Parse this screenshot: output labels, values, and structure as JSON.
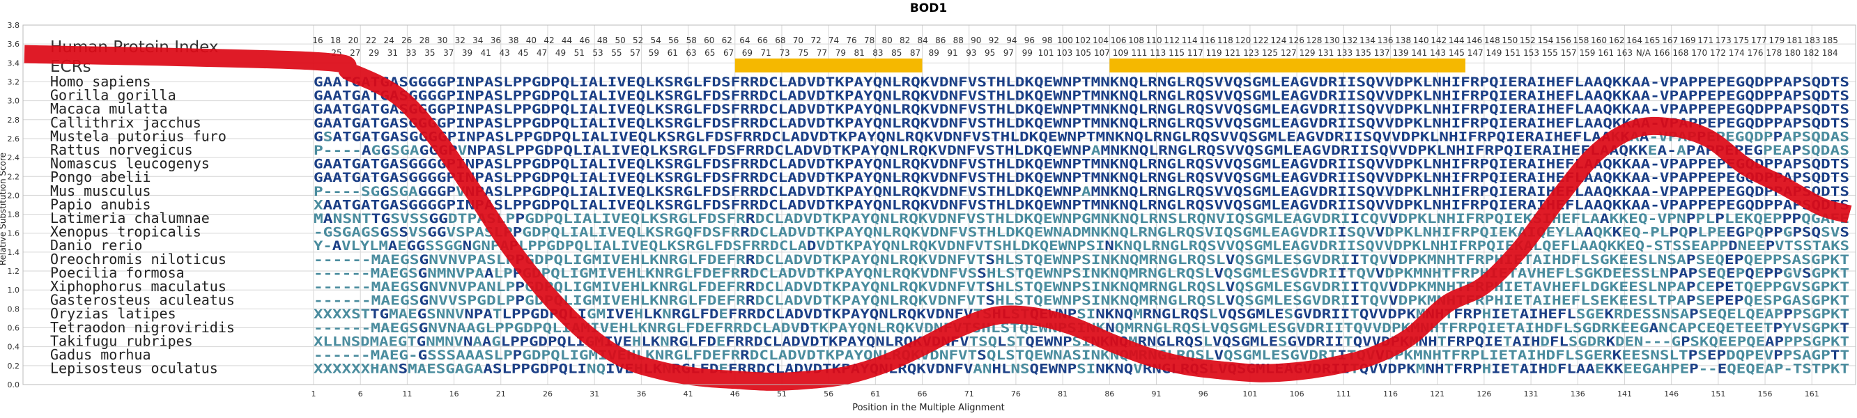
{
  "chart_data": {
    "type": "line",
    "title": "BOD1",
    "xlabel": "Position in the Multiple Alignment",
    "ylabel": "Relative Substitution Score",
    "ylim": [
      0.0,
      3.8
    ],
    "yticks": [
      "0.0",
      "0.2",
      "0.4",
      "0.6",
      "0.8",
      "1.0",
      "1.2",
      "1.4",
      "1.6",
      "1.8",
      "2.0",
      "2.2",
      "2.4",
      "2.6",
      "2.8",
      "3.0",
      "3.2",
      "3.4",
      "3.6",
      "3.8"
    ],
    "xlim": [
      1,
      165
    ],
    "xticks": [
      1,
      6,
      11,
      16,
      21,
      26,
      31,
      36,
      41,
      46,
      51,
      56,
      61,
      66,
      71,
      76,
      81,
      86,
      91,
      96,
      101,
      106,
      111,
      116,
      121,
      126,
      131,
      136,
      141,
      146,
      151,
      156,
      161
    ],
    "grid": true,
    "legend": "none",
    "index_title": "Human Protein Index",
    "ecr_label": "ECRs",
    "index_row1": [
      "16",
      "18",
      "20",
      "22",
      "24",
      "26",
      "28",
      "30",
      "32",
      "34",
      "36",
      "38",
      "40",
      "42",
      "44",
      "46",
      "48",
      "50",
      "52",
      "54",
      "56",
      "58",
      "60",
      "62",
      "64",
      "66",
      "68",
      "70",
      "72",
      "74",
      "76",
      "78",
      "80",
      "82",
      "84",
      "86",
      "88",
      "90",
      "92",
      "94",
      "96",
      "98",
      "100",
      "102",
      "104",
      "106",
      "108",
      "110",
      "112",
      "114",
      "116",
      "118",
      "120",
      "122",
      "124",
      "126",
      "128",
      "130",
      "132",
      "134",
      "136",
      "138",
      "140",
      "142",
      "144",
      "146",
      "148",
      "150",
      "152",
      "154",
      "156",
      "158",
      "160",
      "162",
      "164",
      "165",
      "167",
      "169",
      "171",
      "173",
      "175",
      "177",
      "179",
      "181",
      "183",
      "185"
    ],
    "index_row2": [
      "25",
      "27",
      "29",
      "31",
      "33",
      "35",
      "37",
      "39",
      "41",
      "43",
      "45",
      "47",
      "49",
      "51",
      "53",
      "55",
      "57",
      "59",
      "61",
      "63",
      "65",
      "67",
      "69",
      "71",
      "73",
      "75",
      "77",
      "79",
      "81",
      "83",
      "85",
      "87",
      "89",
      "91",
      "93",
      "95",
      "97",
      "99",
      "101",
      "103",
      "105",
      "107",
      "109",
      "111",
      "113",
      "115",
      "117",
      "119",
      "121",
      "123",
      "125",
      "127",
      "129",
      "131",
      "133",
      "135",
      "137",
      "139",
      "141",
      "143",
      "145",
      "147",
      "149",
      "151",
      "153",
      "155",
      "157",
      "159",
      "161",
      "163",
      "N/A",
      "166",
      "168",
      "170",
      "172",
      "174",
      "176",
      "178",
      "180",
      "182",
      "184"
    ],
    "ecr_regions": [
      [
        46,
        66
      ],
      [
        86,
        124
      ]
    ],
    "species": [
      "Homo sapiens",
      "Gorilla gorilla",
      "Macaca mulatta",
      "Callithrix jacchus",
      "Mustela putorius furo",
      "Rattus norvegicus",
      "Nomascus leucogenys",
      "Pongo abelii",
      "Mus musculus",
      "Papio anubis",
      "Latimeria chalumnae",
      "Xenopus tropicalis",
      "Danio rerio",
      "Oreochromis niloticus",
      "Poecilia formosa",
      "Xiphophorus maculatus",
      "Gasterosteus aculeatus",
      "Oryzias latipes",
      "Tetraodon nigroviridis",
      "Takifugu rubripes",
      "Gadus morhua",
      "Lepisosteus oculatus"
    ],
    "sequences": [
      "GAATGATGASGGGGPINPASLPPGDPQLIALIVEQLKSRGLFDSFRRDCLADVDTKPAYQNLRQKVDNFVSTHLDKQEWNPTMNKNQLRNGLRQSVVQSGMLEAGVDRIISQVVDPKLNHIFRPQIERAIHEFLAAQKKAA-VPAPPEPEGQDPPAPSQDTS",
      "GAATGATGASGGGGPINPASLPPGDPQLIALIVEQLKSRGLFDSFRRDCLADVDTKPAYQNLRQKVDNFVSTHLDKQEWNPTMNKNQLRNGLRQSVVQSGMLEAGVDRIISQVVDPKLNHIFRPQIERAIHEFLAAQKKAA-VPAPPEPEGQDPPAPSQDTS",
      "GAATGATGASGGGGPINPASLPPGDPQLIALIVEQLKSRGLFDSFRRDCLADVDTKPAYQNLRQKVDNFVSTHLDKQEWNPTMNKNQLRNGLRQSVVQSGMLEAGVDRIISQVVDPKLNHIFRPQIERAIHEFLAAQKKAA-VPAPPEPEGQDPPAPSQDTS",
      "GAATGATGASGGGGPINPASLPPGDPQLIALIVEQLKSRGLFDSFRRDCLADVDTKPAYQNLRQKVDNFVSTHLDKQEWNPTMNKNQLRNGLRQSVVQSGMLEAGVDRIISQVVDPKLNHIFRPQIERAIHEFLAAQKKAA-VPAPPEPEGQDPPAPSQDTS",
      "GSATGATGASGGGGPINPASLPPGDPQLIALIVEQLKSRGLFDSFRRDCLADVDTKPAYQNLRQKVDNFVSTHLDKQEWNPTMNKNQLRNGLRQSVVQSGMLEAGVDRIISQVVDPKLNHIFRPQIERAIHEFLAAKKAA-VPAPPEPEGQDPPAPSQDAS",
      "P----AGGSGAGGGPVNPASLPPGDPQLIALIVEQLKSRGLFDSFRRDCLADVDTKPAYQNLRQKVDNFVSTHLDKQEWNPAMNKNQLRNGLRQSVVQSGMLEAGVDRIISQVVDPKLNHIFRPQIERAIHEFLAAQKKEA-APAPPEPEGPEAPSQDAS",
      "GAATGATGASGGGGPINPASLPPGDPQLIALIVEQLKSRGLFDSFRRDCLADVDTKPAYQNLRQKVDNFVSTHLDKQEWNPTMNKNQLRNGLRQSVVQSGMLEAGVDRIISQVVDPKLNHIFRPQIERAIHEFLAAQKKAA-VPAPPEPEGQDPPAPSQDTS",
      "GAATGATGASGGGGPINPASLPPGDPQLIALIVEQLKSRGLFDSFRRDCLADVDTKPAYQNLRQKVDNFVSTHLDKQEWNPTMNKNQLRNGLRQSVVQSGMLEAGVDRIISQVVDPKLNHIFRPQIERAIHEFLAAQKKAA-VPAPPEPEGQDPPAPSQDTS",
      "P----SGGSGAGGGPVNPASLPPGDPQLIALIVEQLKSRGLFDSFRRDCLADVDTKPAYQNLRQKVDNFVSTHLDKQEWNPAMNKNQLRNGLRQSVVQSGMLEAGVDRIISQVVDPKLNHIFRPQIERAIHEFLAAQKKAA-VPAPPEPEGQDPPAPSQDTS",
      "XAATGATGASGGGGPINPASLPPGDPQLIALIVEQLKSRGLFDSFRRDCLADVDTKPAYQNLRQKVDNFVSTHLDKQEWNPTMNKNQLRNGLRQSVVQSGMLEAGVDRIISQVVDPKLNHIFRPQIERAIHEFLAAQKKAA-VPAPPEPEGQDPPAPSQDTS",
      "MANSNTTGSVSSGGDTPASLPPGDPQLIALIVEQLKSRGLFDSFRRDCLADVDTKPAYQNLRQKVDNFVSTHLDKQEWNPGMNKNQLRNSLRQNVIQSGMLEAGVDRIICQVVDPKLNHIFRPQIEKSIHEFLAAKKEQ-VPNPPLPLEKQEPPPQGAFE",
      "-GSGAGSGSSVSGGVSPASLPPGDPQLIALIVEQLKSRGQFDSFRRDCLADVDTKPAYQNLRQKVDNFVSTHLDKQEWNADMNKNQLRNGLRQSVIQSGMLEAGVDRIISQVVDPKLNHIFRPQIEKAIQEYLAAQKKEQ-PLPQPLPEEGPQPPGPSQSVS",
      "Y-AVLYLMAEGGSSGGNGNPAPLPPGDPQLIALIVEQLKSRGLFDSFRRDCLADVDTKPAYQNLRQKVDNFVTSHLDKQEWNPSINKNQLRNGLRQSVVQSGMLEAGVDRIISQVVDPKLNHIFRPQIEKALQEFLAAQKKEQ-STSSEAPPDNEEPVTSSTAKS",
      "------MAEGSGNVNVPASLPPGDPQLIGMIVEHLKNRGLFDEFRRDCLADVDTKPAYQNLRQKVDNFVTSHLSTQEWNPSINKNQMRNGLRQSLVQSGMLESGVDRIITQVVDPKMNHTFRPHIETAIHDFLSGKEESLNSAPSEQEPQEPPSASGPKT",
      "------MAEGSGNMNVPAALPPGDPQLIGMIVEHLKNRGLFDEFRRDCLADVDTKPAYQNLRQKVDNFVSSHLSTQEWNPSINKNQMRNGLRQSLVQSGMLESGVDRIITQVVDPKMNHTFRPHIETAVHEFLSGKDEESSLNPAPSEQEPQEPPGVSGPKT",
      "------MAEGSGNVNVPANLPPGDPQLIGMIVEHLKNRGLFDEFRRDCLADVDTKPAYQNLRQKVDNFVTSHLSTQEWNPSINKNQMRNGLRQSLVQSGMLESGVDRIITQVVDPKMNHTFRPHIETAVHEFLDGKEESLNPAPCEPETQEPPGVSGPKT",
      "------MAEGSGNVVSPGDLPPGDPQLIGMIVEHLKNRGLFDEFRRDCLADVDTKPAYQNLRQKVDNFVTSHLSTQEWNPSINKNQMRNGLRQSLVQSGMLESGVDRIITQVVDPKMNHTFRPHIETAIHEFLSEKEESLTPAPSEPEPQESPGASGPKT",
      "XXXXSTTGMAEGSNNVNPATLPPGDPQLIGMIVEHLKNRGLFDEFRRDCLADVDTKPAYQNLRQKVDNFVTSHLSTQEWNPSINKNQMRNGLRQSLVQSGMLESGVDRIITQVVDPKMNHTFRPHIETAIHEFLSGEKRDESSNSAPSEQELQEAPPPSGPKT",
      "------MAEGSGNVNAAGLPPGDPQLIAMIVEHLKNRGLFDEFRRDCLADVDTKPAYQNLRQKVDNFVTSHLSTQEWNPSINKNQMRNGLRQSLVQSGMLESGVDRIITQVVDPKMNHTFRPQIETAIHDFLSGDRKEEGANCAPCEQETEETPYVSGPKT",
      "XLLNSDMAEGTGNMNVNAAGLPPGDPQLIGMIVEHLKNRGLFDEFRRDCLADVDTKPAYQNLRQKVDNFVTSQLSTQEWNPSINKNQMRNGLRQSLVQSGMLESGVDRIITQVVDPKMNHTFRPQIETAIHDFLSGDRKDEN---GPSKQEEPQEAPPPSGPKT",
      "------MAEG-GSSSAAASLPPGDPQLIGMIVEHLKNRGLFDEFRRDCLADVDTKPAYQNLRQKVDNFVTSQLSTQEWNASINKNQMRNGLRQSLVQSGMLESGVDRIITQVVDPKMNHTFRPLIETAIHDFLSGERKEESNSLTPSEPDQPEVPPSAGPTT",
      "XXXXXXHANSMAESGAGAASLPPGDPQLINQIVEHLKNRGLFDEFRRDCLADVDTKPAYQNLRQKVDNFVANHLNSQEWNPSINKNQVRNGLRQSLVQSGMLEAGVDRIITQVVDPKMNHTFRPHIETAIHDFLAAEKKEEGAHPEP--EQEQEAP-TSTPKT"
    ],
    "series": [
      {
        "x": [
          1,
          5,
          10,
          14,
          18,
          22,
          26,
          30,
          34,
          38,
          42,
          46,
          50,
          54,
          58,
          62,
          66,
          70,
          74,
          78,
          82,
          86,
          90,
          94,
          98,
          102,
          106,
          110,
          114,
          118,
          122,
          126,
          130,
          134,
          138,
          142,
          146,
          150,
          154,
          158,
          162,
          165
        ],
        "values": [
          3.42,
          3.3,
          3.05,
          2.62,
          2.05,
          1.45,
          0.95,
          0.55,
          0.28,
          0.15,
          0.08,
          0.05,
          0.03,
          0.05,
          0.1,
          0.22,
          0.4,
          0.6,
          0.73,
          0.72,
          0.62,
          0.45,
          0.3,
          0.2,
          0.15,
          0.12,
          0.14,
          0.2,
          0.3,
          0.5,
          0.85,
          1.05,
          1.45,
          1.98,
          2.45,
          2.7,
          2.72,
          2.6,
          2.3,
          2.1,
          1.88,
          1.8
        ]
      }
    ],
    "colors": {
      "line": "#dd0a17",
      "ecr": "#f5b800",
      "conserved": "#1b3f86",
      "variable": "#4a8c9e",
      "grid": "#d6d6d6",
      "index_text": "#333333"
    }
  }
}
